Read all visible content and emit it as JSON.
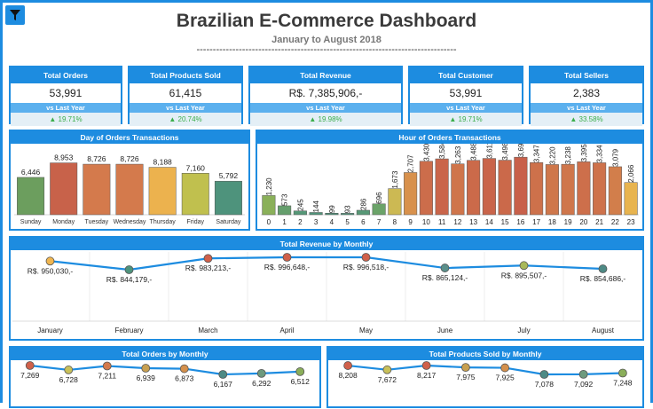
{
  "header": {
    "title": "Brazilian E-Commerce Dashboard",
    "subtitle": "January to August 2018",
    "divider": "--------------------------------------------------------------------------------"
  },
  "kpis": [
    {
      "label": "Total Orders",
      "value": "53,991",
      "sub": "vs Last Year",
      "change": "▲ 19.71%"
    },
    {
      "label": "Total Products Sold",
      "value": "61,415",
      "sub": "vs Last Year",
      "change": "▲ 20.74%"
    },
    {
      "label": "Total Revenue",
      "value": "R$. 7,385,906,-",
      "sub": "vs Last Year",
      "change": "▲ 19.98%"
    },
    {
      "label": "Total Customer",
      "value": "53,991",
      "sub": "vs Last Year",
      "change": "▲ 19.71%"
    },
    {
      "label": "Total Sellers",
      "value": "2,383",
      "sub": "vs Last Year",
      "change": "▲ 33.58%"
    }
  ],
  "colors": {
    "accent": "#1d8ce0"
  },
  "chart_data": [
    {
      "type": "bar",
      "title": "Day of Orders Transactions",
      "categories": [
        "Sunday",
        "Monday",
        "Tuesday",
        "Wednesday",
        "Thursday",
        "Friday",
        "Saturday"
      ],
      "values": [
        6446,
        8953,
        8726,
        8726,
        8188,
        7160,
        5792
      ],
      "labels": [
        "6,446",
        "8,953",
        "8,726",
        "8,726",
        "8,188",
        "7,160",
        "5,792"
      ],
      "colors": [
        "#6c9e5e",
        "#c8624a",
        "#d47a4c",
        "#d47a4c",
        "#ecb24e",
        "#c0c04e",
        "#4e937c"
      ],
      "ylim": [
        0,
        9500
      ]
    },
    {
      "type": "bar",
      "title": "Hour of Orders Transactions",
      "categories": [
        "0",
        "1",
        "2",
        "3",
        "4",
        "5",
        "6",
        "7",
        "8",
        "9",
        "10",
        "11",
        "12",
        "13",
        "14",
        "15",
        "16",
        "17",
        "18",
        "19",
        "20",
        "21",
        "22",
        "23"
      ],
      "values": [
        1230,
        573,
        245,
        144,
        99,
        93,
        286,
        696,
        1673,
        2707,
        3430,
        3584,
        3263,
        3488,
        3611,
        3498,
        3692,
        3347,
        3220,
        3238,
        3395,
        3334,
        3079,
        2066
      ],
      "labels": [
        "1,230",
        "573",
        "245",
        "144",
        "99",
        "93",
        "286",
        "696",
        "1,673",
        "2,707",
        "3,430",
        "3,584",
        "3,263",
        "3,488",
        "3,611",
        "3,498",
        "3,692",
        "3,347",
        "3,220",
        "3,238",
        "3,395",
        "3,334",
        "3,079",
        "2,066"
      ],
      "ylim": [
        0,
        4100
      ]
    },
    {
      "type": "line",
      "title": "Total Revenue by Monthly",
      "categories": [
        "January",
        "February",
        "March",
        "April",
        "May",
        "June",
        "July",
        "August"
      ],
      "values": [
        950030,
        844179,
        983213,
        996648,
        996518,
        865124,
        895507,
        854686
      ],
      "labels": [
        "R$. 950,030,-",
        "R$. 844,179,-",
        "R$. 983,213,-",
        "R$. 996,648,-",
        "R$. 996,518,-",
        "R$. 865,124,-",
        "R$. 895,507,-",
        "R$. 854,686,-"
      ],
      "colors": [
        "#f0b650",
        "#4e937c",
        "#d0604a",
        "#d0604a",
        "#d0604a",
        "#5a8f8a",
        "#a8b85a",
        "#4e8a85"
      ]
    },
    {
      "type": "line",
      "title": "Total Orders by Monthly",
      "values": [
        7269,
        6728,
        7211,
        6939,
        6873,
        6167,
        6292,
        6512
      ],
      "labels": [
        "7,269",
        "6,728",
        "7,211",
        "6,939",
        "6,873",
        "6,167",
        "6,292",
        "6,512"
      ],
      "colors": [
        "#d0604a",
        "#c8c05a",
        "#d47a4c",
        "#c8a050",
        "#d4904c",
        "#4e8a85",
        "#6e9a7e",
        "#8aae5a"
      ]
    },
    {
      "type": "line",
      "title": "Total Products Sold by Monthly",
      "values": [
        8208,
        7672,
        8217,
        7975,
        7925,
        7078,
        7092,
        7248
      ],
      "labels": [
        "8,208",
        "7,672",
        "8,217",
        "7,975",
        "7,925",
        "7,078",
        "7,092",
        "7,248"
      ],
      "colors": [
        "#d0604a",
        "#c8c05a",
        "#d0604a",
        "#c8a050",
        "#d4904c",
        "#4e8a85",
        "#6e9a7e",
        "#8aae5a"
      ]
    }
  ]
}
